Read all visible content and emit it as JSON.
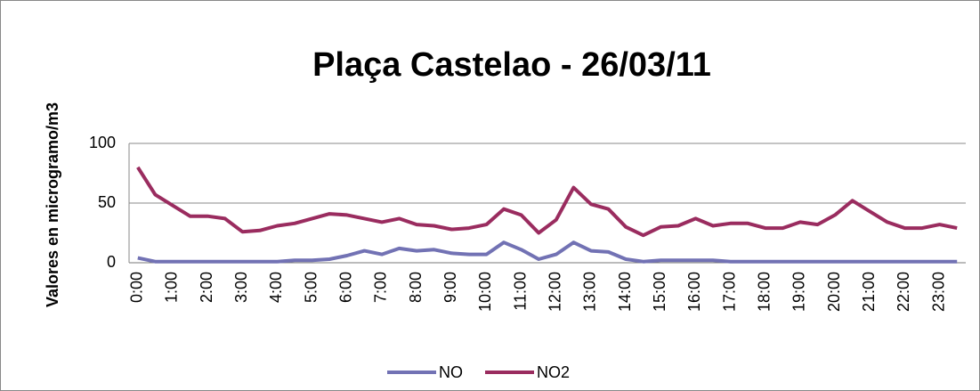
{
  "chart_data": {
    "type": "line",
    "title": "Plaça Castelao - 26/03/11",
    "y_label": "Valores en microgramo/m3",
    "categories": [
      "0:00",
      null,
      "1:00",
      null,
      "2:00",
      null,
      "3:00",
      null,
      "4:00",
      null,
      "5:00",
      null,
      "6:00",
      null,
      "7:00",
      null,
      "8:00",
      null,
      "9:00",
      null,
      "10:00",
      null,
      "11:00",
      null,
      "12:00",
      null,
      "13:00",
      null,
      "14:00",
      null,
      "15:00",
      null,
      "16:00",
      null,
      "17:00",
      null,
      "18:00",
      null,
      "19:00",
      null,
      "20:00",
      null,
      "21:00",
      null,
      "22:00",
      null,
      "23:00",
      null
    ],
    "series": [
      {
        "name": "NO",
        "color": "#7272b4",
        "values": [
          4,
          1,
          1,
          1,
          1,
          1,
          1,
          1,
          1,
          2,
          2,
          3,
          6,
          10,
          7,
          12,
          10,
          11,
          8,
          7,
          7,
          17,
          11,
          3,
          7,
          17,
          10,
          9,
          3,
          1,
          2,
          2,
          2,
          2,
          1,
          1,
          1,
          1,
          1,
          1,
          1,
          1,
          1,
          1,
          1,
          1,
          1,
          1
        ]
      },
      {
        "name": "NO2",
        "color": "#9a2c5f",
        "values": [
          80,
          57,
          48,
          39,
          39,
          37,
          26,
          27,
          31,
          33,
          37,
          41,
          40,
          37,
          34,
          37,
          32,
          31,
          28,
          29,
          32,
          45,
          40,
          25,
          36,
          63,
          49,
          45,
          30,
          23,
          30,
          31,
          37,
          31,
          33,
          33,
          29,
          29,
          34,
          32,
          40,
          52,
          43,
          34,
          29,
          29,
          32,
          29
        ]
      }
    ],
    "ylim": [
      0,
      100
    ],
    "yticks": [
      0,
      50,
      100
    ],
    "grid": true,
    "legend": "bottom"
  }
}
